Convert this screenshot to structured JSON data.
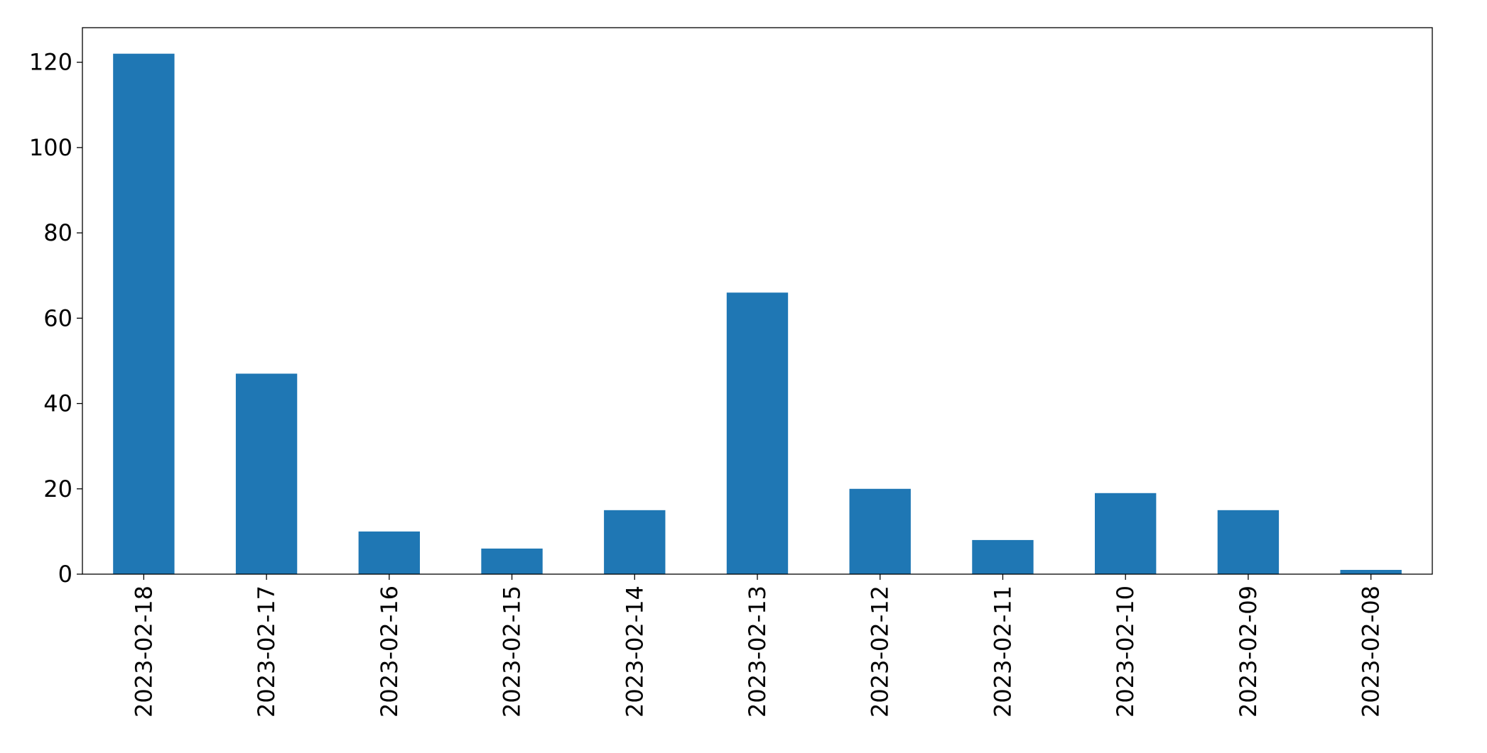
{
  "chart_data": {
    "type": "bar",
    "categories": [
      "2023-02-18",
      "2023-02-17",
      "2023-02-16",
      "2023-02-15",
      "2023-02-14",
      "2023-02-13",
      "2023-02-12",
      "2023-02-11",
      "2023-02-10",
      "2023-02-09",
      "2023-02-08"
    ],
    "values": [
      122,
      47,
      10,
      6,
      15,
      66,
      20,
      8,
      19,
      15,
      1
    ],
    "color": "#1f77b4",
    "ylim": [
      0,
      128.1
    ],
    "yticks": [
      0,
      20,
      40,
      60,
      80,
      100,
      120
    ],
    "grid": false
  }
}
